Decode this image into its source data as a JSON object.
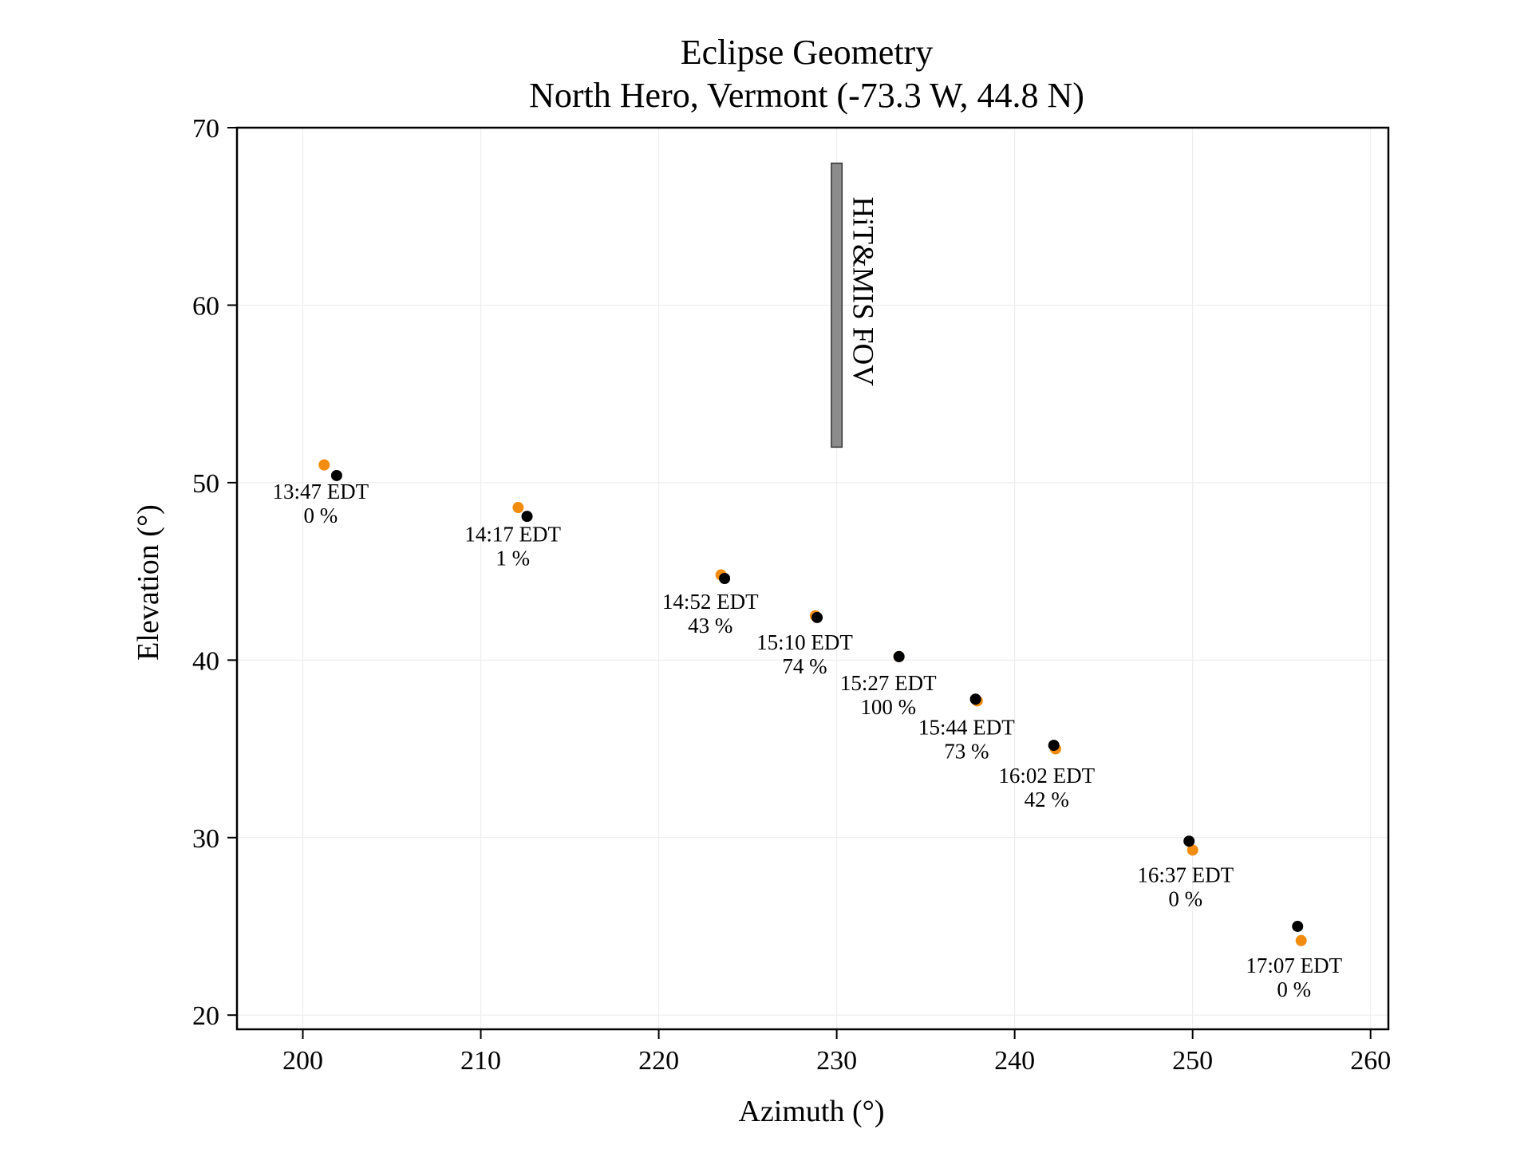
{
  "chart_data": {
    "type": "scatter",
    "title": "Eclipse Geometry",
    "subtitle": "North Hero, Vermont (-73.3 W, 44.8 N)",
    "xlabel": "Azimuth (°)",
    "ylabel": "Elevation (°)",
    "xlim": [
      196.3,
      261.0
    ],
    "ylim": [
      19.2,
      70.0
    ],
    "xticks": [
      200,
      210,
      220,
      230,
      240,
      250,
      260
    ],
    "yticks": [
      20,
      30,
      40,
      50,
      60,
      70
    ],
    "grid": true,
    "colors": {
      "orange": "#f28c0f",
      "black": "#000000",
      "fov_fill": "#8c8c8c",
      "grid": "#eeeeee"
    },
    "series": [
      {
        "color": "#f28c0f",
        "points": [
          {
            "x": 201.2,
            "y": 51.0
          },
          {
            "x": 212.1,
            "y": 48.6
          },
          {
            "x": 223.5,
            "y": 44.8
          },
          {
            "x": 228.8,
            "y": 42.5
          },
          {
            "x": 233.5,
            "y": 40.2
          },
          {
            "x": 237.9,
            "y": 37.7
          },
          {
            "x": 242.3,
            "y": 35.0
          },
          {
            "x": 250.0,
            "y": 29.3
          },
          {
            "x": 256.1,
            "y": 24.2
          }
        ]
      },
      {
        "color": "#000000",
        "points": [
          {
            "x": 201.9,
            "y": 50.4
          },
          {
            "x": 212.6,
            "y": 48.1
          },
          {
            "x": 223.7,
            "y": 44.6
          },
          {
            "x": 228.9,
            "y": 42.4
          },
          {
            "x": 233.5,
            "y": 40.2
          },
          {
            "x": 237.8,
            "y": 37.8
          },
          {
            "x": 242.2,
            "y": 35.2
          },
          {
            "x": 249.8,
            "y": 29.8
          },
          {
            "x": 255.9,
            "y": 25.0
          }
        ]
      }
    ],
    "annotations": [
      {
        "time": "13:47 EDT",
        "percent": "0 %",
        "x": 201.0,
        "y": 49.1
      },
      {
        "time": "14:17 EDT",
        "percent": "1 %",
        "x": 211.8,
        "y": 46.7
      },
      {
        "time": "14:52 EDT",
        "percent": "43 %",
        "x": 222.9,
        "y": 42.9
      },
      {
        "time": "15:10 EDT",
        "percent": "74 %",
        "x": 228.2,
        "y": 40.6
      },
      {
        "time": "15:27 EDT",
        "percent": "100 %",
        "x": 232.9,
        "y": 38.3
      },
      {
        "time": "15:44 EDT",
        "percent": "73 %",
        "x": 237.3,
        "y": 35.8
      },
      {
        "time": "16:02 EDT",
        "percent": "42 %",
        "x": 241.8,
        "y": 33.1
      },
      {
        "time": "16:37 EDT",
        "percent": "0 %",
        "x": 249.6,
        "y": 27.5
      },
      {
        "time": "17:07 EDT",
        "percent": "0 %",
        "x": 255.7,
        "y": 22.4
      }
    ],
    "fov": {
      "label": "HiT&MIS FOV",
      "x_range": [
        229.7,
        230.3
      ],
      "y_range": [
        52.0,
        68.0
      ]
    }
  }
}
